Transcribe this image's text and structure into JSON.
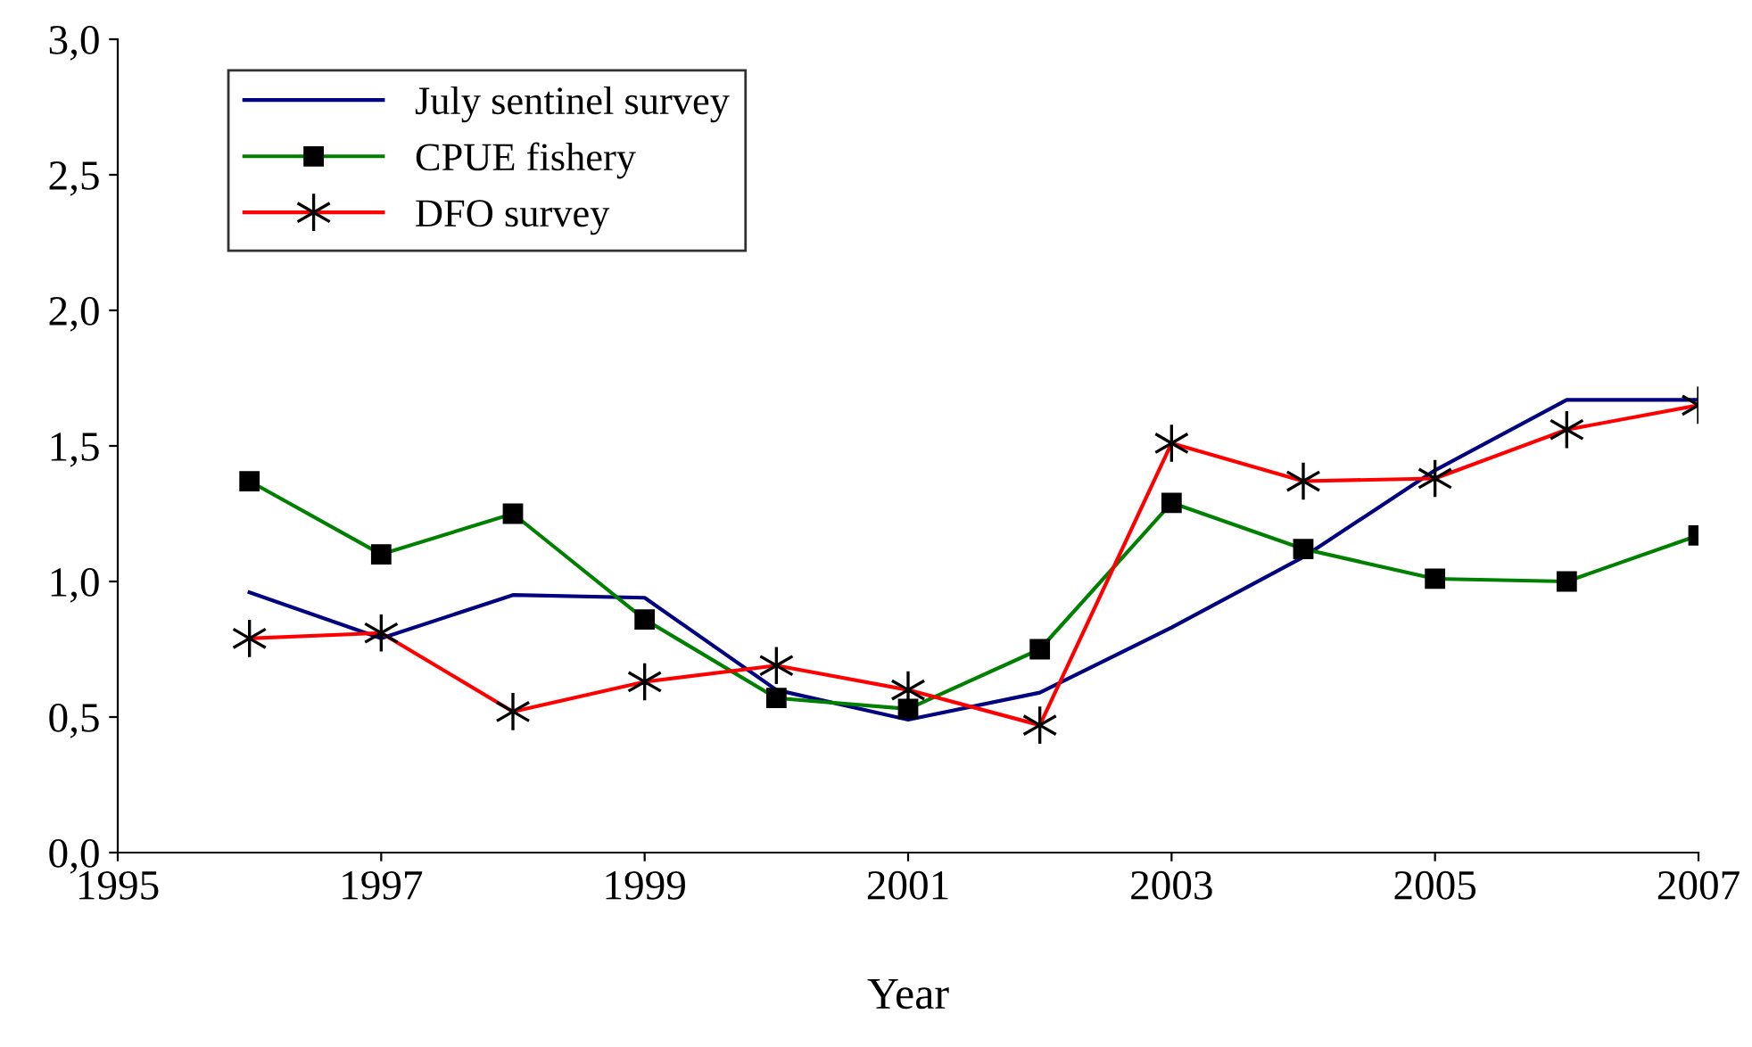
{
  "chart_data": {
    "type": "line",
    "xlabel": "Year",
    "x": [
      1996,
      1997,
      1998,
      1999,
      2000,
      2001,
      2002,
      2003,
      2004,
      2005,
      2006,
      2007
    ],
    "series": [
      {
        "name": "July sentinel survey",
        "color": "#000080",
        "marker": "none",
        "values": [
          0.96,
          0.79,
          0.95,
          0.94,
          0.6,
          0.49,
          0.59,
          0.83,
          1.09,
          1.41,
          1.67,
          1.67
        ]
      },
      {
        "name": "CPUE fishery",
        "color": "#008000",
        "marker": "square",
        "values": [
          1.37,
          1.1,
          1.25,
          0.86,
          0.57,
          0.53,
          0.75,
          1.29,
          1.12,
          1.01,
          1.0,
          1.17
        ]
      },
      {
        "name": "DFO survey",
        "color": "#ff0000",
        "marker": "cross",
        "values": [
          0.79,
          0.81,
          0.52,
          0.63,
          0.69,
          0.6,
          0.47,
          1.51,
          1.37,
          1.38,
          1.56,
          1.65
        ]
      }
    ],
    "xlim": [
      1995,
      2007
    ],
    "xticks": [
      1995,
      1997,
      1999,
      2001,
      2003,
      2005,
      2007
    ],
    "ylim": [
      0,
      3
    ],
    "yticks": [
      {
        "value": 0,
        "label": "0,0"
      },
      {
        "value": 0.5,
        "label": "0,5"
      },
      {
        "value": 1,
        "label": "1,0"
      },
      {
        "value": 1.5,
        "label": "1,5"
      },
      {
        "value": 2,
        "label": "2,0"
      },
      {
        "value": 2.5,
        "label": "2,5"
      },
      {
        "value": 3,
        "label": "3,0"
      }
    ],
    "legend": "top left",
    "grid": false
  }
}
